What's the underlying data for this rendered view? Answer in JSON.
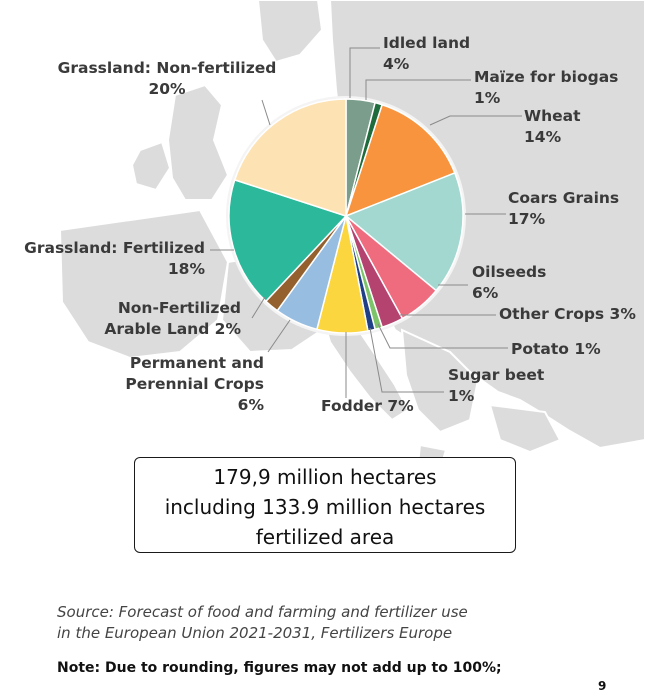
{
  "colors": {
    "label_text": "#3a3a3a",
    "map_land": "#dcdcdc",
    "leader_line": "#8a8a8a"
  },
  "chart_data": {
    "type": "pie",
    "unit": "%",
    "slices": [
      {
        "key": "idled",
        "label_lines": [
          "Idled land",
          "4%"
        ],
        "value": 4,
        "color": "#7a9e8b"
      },
      {
        "key": "maize",
        "label_lines": [
          "Maïze for biogas",
          "1%"
        ],
        "value": 1,
        "color": "#1e6b3b"
      },
      {
        "key": "wheat",
        "label_lines": [
          "Wheat",
          "14%"
        ],
        "value": 14,
        "color": "#f7943d"
      },
      {
        "key": "coarse",
        "label_lines": [
          "Coars Grains",
          "17%"
        ],
        "value": 17,
        "color": "#a2d8cf"
      },
      {
        "key": "oilseeds",
        "label_lines": [
          "Oilseeds",
          "6%"
        ],
        "value": 6,
        "color": "#ef6b7e"
      },
      {
        "key": "other",
        "label_lines": [
          "Other Crops 3%"
        ],
        "value": 3,
        "color": "#b4446f"
      },
      {
        "key": "potato",
        "label_lines": [
          "Potato 1%"
        ],
        "value": 1,
        "color": "#7cc36a"
      },
      {
        "key": "sugar",
        "label_lines": [
          "Sugar beet",
          "1%"
        ],
        "value": 1,
        "color": "#1f3f86"
      },
      {
        "key": "fodder",
        "label_lines": [
          "Fodder 7%"
        ],
        "value": 7,
        "color": "#fcd63e"
      },
      {
        "key": "permanent",
        "label_lines": [
          "Permanent and",
          "Perennial Crops",
          "6%"
        ],
        "value": 6,
        "color": "#97bde1"
      },
      {
        "key": "nonfert_arable",
        "label_lines": [
          "Non-Fertilized",
          "Arable Land 2%"
        ],
        "value": 2,
        "color": "#93602e"
      },
      {
        "key": "grass_fert",
        "label_lines": [
          "Grassland: Fertilized",
          "18%"
        ],
        "value": 18,
        "color": "#2cb89a"
      },
      {
        "key": "grass_nonfert",
        "label_lines": [
          "Grassland: Non-fertilized",
          "20%"
        ],
        "value": 20,
        "color": "#fde2b4"
      }
    ]
  },
  "summary_lines": [
    "179,9 million hectares",
    "including 133.9 million hectares",
    "fertilized area"
  ],
  "source_lines": [
    "Source: Forecast of food and farming and fertilizer use",
    "in the European Union 2021-2031, Fertilizers Europe"
  ],
  "note": "Note: Due to rounding, figures may not add up to 100%;",
  "page_number": "9"
}
